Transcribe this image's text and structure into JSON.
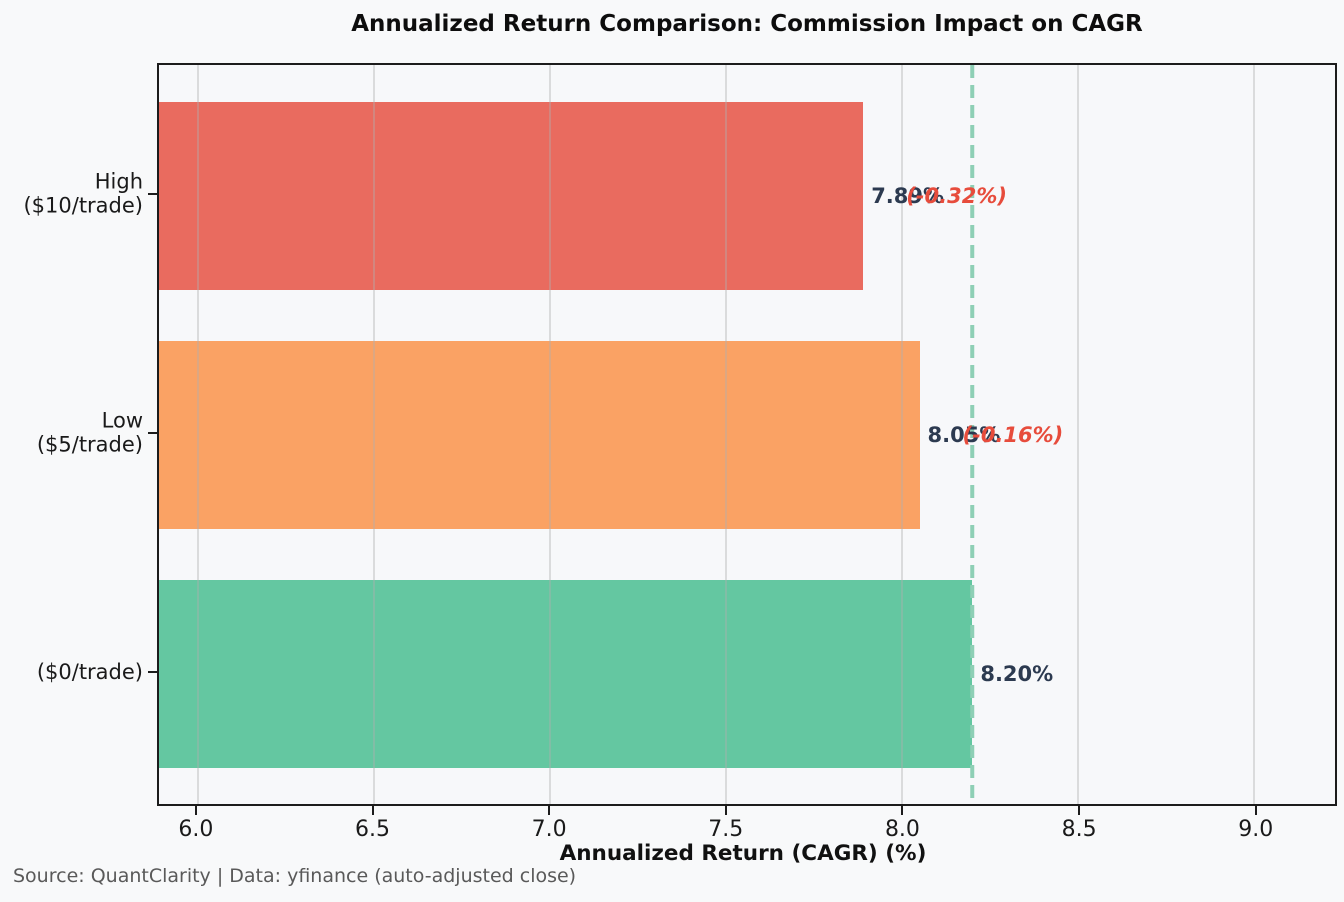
{
  "header": {
    "title": "Annualized Return Comparison: Commission Impact on CAGR"
  },
  "footer": {
    "text": "Source: QuantClarity | Data: yfinance (auto-adjusted close)"
  },
  "chart_data": {
    "type": "bar",
    "orientation": "horizontal",
    "title": "Annualized Return Comparison: Commission Impact on CAGR",
    "xlabel": "Annualized Return (CAGR) (%)",
    "categories": [
      "High\n($10/trade)",
      "Low\n($5/trade)",
      "($0/trade)"
    ],
    "category_lines": [
      [
        "High",
        "($10/trade)"
      ],
      [
        "Low",
        "($5/trade)"
      ],
      [
        "($0/trade)"
      ]
    ],
    "series": [
      {
        "name": "Annualized Return (CAGR) %",
        "values": [
          7.89,
          8.05,
          8.2
        ]
      }
    ],
    "value_labels": [
      "7.89%",
      "8.05%",
      "8.20%"
    ],
    "delta_labels": [
      "(-0.32%)",
      "(-0.16%)",
      null
    ],
    "bar_colors": [
      "#e96b5f",
      "#faa264",
      "#64c7a1"
    ],
    "value_label_color": "#2c3a50",
    "delta_label_color": "#e74c3c",
    "xlim": [
      5.89,
      9.23
    ],
    "xticks": [
      6.0,
      6.5,
      7.0,
      7.5,
      8.0,
      8.5,
      9.0
    ],
    "xtick_labels": [
      "6.0",
      "6.5",
      "7.0",
      "7.5",
      "8.0",
      "8.5",
      "9.0"
    ],
    "grid": "x",
    "legend": false,
    "reference_line": {
      "value": 8.2,
      "color": "#8ecfb5",
      "style": "dashed"
    },
    "background": "#f8f9fa",
    "plot_background": "#f7f8fa",
    "axis_border_color": "#1c1c1c"
  }
}
